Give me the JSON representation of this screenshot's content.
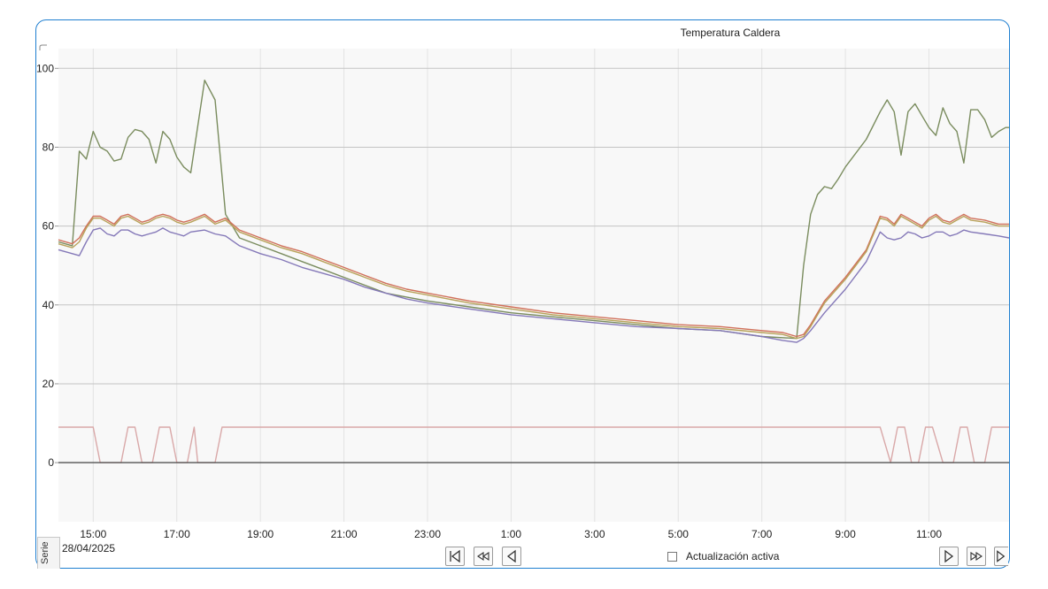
{
  "window": {
    "frame_color": "#1f7fd0"
  },
  "chart_data": {
    "type": "line",
    "title": "Temperatura Caldera",
    "xlabel": "",
    "ylabel": "",
    "ylim": [
      -15,
      105
    ],
    "xlim": [
      "14:10",
      "12:55"
    ],
    "x_ticks": [
      "15:00",
      "17:00",
      "19:00",
      "21:00",
      "23:00",
      "1:00",
      "3:00",
      "5:00",
      "7:00",
      "9:00",
      "11:00"
    ],
    "y_ticks": [
      0,
      20,
      40,
      60,
      80,
      100
    ],
    "grid": true,
    "legend": "none",
    "date": "28/04/2025",
    "series": [
      {
        "color": "#7a8c5e",
        "x": [
          "14:10",
          "14:30",
          "14:40",
          "14:50",
          "15:00",
          "15:10",
          "15:20",
          "15:30",
          "15:40",
          "15:50",
          "16:00",
          "16:10",
          "16:20",
          "16:30",
          "16:40",
          "16:50",
          "17:00",
          "17:10",
          "17:20",
          "17:40",
          "17:55",
          "18:10",
          "18:30",
          "19:00",
          "19:30",
          "20:00",
          "20:30",
          "21:00",
          "21:30",
          "22:00",
          "22:30",
          "23:00",
          "0:00",
          "1:00",
          "2:00",
          "3:00",
          "4:00",
          "5:00",
          "6:00",
          "7:00",
          "7:50",
          "8:00",
          "8:10",
          "8:20",
          "8:30",
          "8:40",
          "8:50",
          "9:00",
          "9:30",
          "9:50",
          "10:00",
          "10:10",
          "10:20",
          "10:30",
          "10:40",
          "10:50",
          "11:00",
          "11:10",
          "11:20",
          "11:30",
          "11:40",
          "11:50",
          "12:00",
          "12:10",
          "12:20",
          "12:30",
          "12:40",
          "12:50",
          "12:55"
        ],
        "y": [
          56,
          55,
          79,
          77,
          84,
          80,
          79,
          76.5,
          77,
          82.5,
          84.5,
          84,
          82,
          76,
          84,
          82,
          77.5,
          75,
          73.5,
          97,
          92,
          63,
          57,
          55,
          53,
          51,
          49,
          47,
          45,
          43,
          42,
          41,
          39.5,
          38,
          37,
          36,
          35,
          34,
          33.5,
          32,
          31.5,
          50,
          63,
          68,
          70,
          69.5,
          72,
          75,
          82,
          89,
          92,
          89,
          78,
          89,
          91,
          88,
          85,
          83,
          90,
          86,
          84,
          76,
          89.5,
          89.5,
          87,
          82.5,
          84,
          85,
          85
        ]
      },
      {
        "color": "#d0705a",
        "x": [
          "14:10",
          "14:30",
          "14:40",
          "14:50",
          "15:00",
          "15:10",
          "15:20",
          "15:30",
          "15:40",
          "15:50",
          "16:00",
          "16:10",
          "16:20",
          "16:30",
          "16:40",
          "16:50",
          "17:00",
          "17:10",
          "17:20",
          "17:40",
          "17:55",
          "18:10",
          "18:30",
          "19:00",
          "19:30",
          "20:00",
          "20:30",
          "21:00",
          "21:30",
          "22:00",
          "22:30",
          "23:00",
          "0:00",
          "1:00",
          "2:00",
          "3:00",
          "4:00",
          "5:00",
          "6:00",
          "7:00",
          "7:30",
          "7:50",
          "8:00",
          "8:10",
          "8:30",
          "9:00",
          "9:30",
          "9:50",
          "10:00",
          "10:10",
          "10:20",
          "10:30",
          "10:40",
          "10:50",
          "11:00",
          "11:10",
          "11:20",
          "11:30",
          "11:40",
          "11:50",
          "12:00",
          "12:20",
          "12:40",
          "12:55"
        ],
        "y": [
          56.5,
          55.5,
          57,
          60,
          62.5,
          62.5,
          61.5,
          60.5,
          62.5,
          63,
          62,
          61,
          61.5,
          62.5,
          63,
          62.5,
          61.5,
          61,
          61.5,
          63,
          61,
          62,
          59,
          57,
          55,
          53.5,
          51.5,
          49.5,
          47.5,
          45.5,
          44,
          43,
          41,
          39.5,
          38,
          37,
          36,
          35,
          34.5,
          33.5,
          33,
          32,
          32.5,
          35,
          41,
          47,
          54,
          62.5,
          62,
          60.5,
          63,
          62,
          61,
          60,
          62,
          63,
          61.5,
          61,
          62,
          63,
          62,
          61.5,
          60.5,
          60.5
        ]
      },
      {
        "color": "#b8a25a",
        "x": [
          "14:10",
          "14:30",
          "14:40",
          "14:50",
          "15:00",
          "15:10",
          "15:20",
          "15:30",
          "15:40",
          "15:50",
          "16:00",
          "16:10",
          "16:20",
          "16:30",
          "16:40",
          "16:50",
          "17:00",
          "17:10",
          "17:20",
          "17:40",
          "17:55",
          "18:10",
          "18:30",
          "19:00",
          "19:30",
          "20:00",
          "20:30",
          "21:00",
          "21:30",
          "22:00",
          "22:30",
          "23:00",
          "0:00",
          "1:00",
          "2:00",
          "3:00",
          "4:00",
          "5:00",
          "6:00",
          "7:00",
          "7:30",
          "7:50",
          "8:00",
          "8:10",
          "8:30",
          "9:00",
          "9:30",
          "9:50",
          "10:00",
          "10:10",
          "10:20",
          "10:30",
          "10:40",
          "10:50",
          "11:00",
          "11:10",
          "11:20",
          "11:30",
          "11:40",
          "11:50",
          "12:00",
          "12:20",
          "12:40",
          "12:55"
        ],
        "y": [
          55.5,
          54.5,
          56,
          59.5,
          62,
          62,
          61,
          60,
          62,
          62.5,
          61.5,
          60.5,
          61,
          62,
          62.5,
          62,
          61,
          60.5,
          61,
          62.5,
          60.5,
          61.5,
          58.5,
          56.5,
          54.5,
          53,
          51,
          49,
          47,
          45,
          43.5,
          42.5,
          40.5,
          39,
          37.5,
          36.5,
          35.5,
          34.5,
          34,
          33,
          32.5,
          31.5,
          32,
          34.5,
          40.5,
          46.5,
          53.5,
          62,
          61.5,
          60,
          62.5,
          61.5,
          60.5,
          59.5,
          61.5,
          62.5,
          61,
          60.5,
          61.5,
          62.5,
          61.5,
          61,
          60,
          60
        ]
      },
      {
        "color": "#8478b8",
        "x": [
          "14:10",
          "14:30",
          "14:40",
          "14:50",
          "15:00",
          "15:10",
          "15:20",
          "15:30",
          "15:40",
          "15:50",
          "16:00",
          "16:10",
          "16:20",
          "16:30",
          "16:40",
          "16:50",
          "17:00",
          "17:10",
          "17:20",
          "17:40",
          "17:55",
          "18:10",
          "18:30",
          "19:00",
          "19:30",
          "20:00",
          "20:30",
          "21:00",
          "21:30",
          "22:00",
          "22:30",
          "23:00",
          "0:00",
          "1:00",
          "2:00",
          "3:00",
          "4:00",
          "5:00",
          "6:00",
          "7:00",
          "7:30",
          "7:50",
          "8:00",
          "8:10",
          "8:30",
          "9:00",
          "9:30",
          "9:50",
          "10:00",
          "10:10",
          "10:20",
          "10:30",
          "10:40",
          "10:50",
          "11:00",
          "11:10",
          "11:20",
          "11:30",
          "11:40",
          "11:50",
          "12:00",
          "12:20",
          "12:40",
          "12:55"
        ],
        "y": [
          54,
          53,
          52.5,
          56,
          59,
          59.5,
          58,
          57.5,
          59,
          59,
          58,
          57.5,
          58,
          58.5,
          59.5,
          58.5,
          58,
          57.5,
          58.5,
          59,
          58,
          57.5,
          55,
          53,
          51.5,
          49.5,
          48,
          46.5,
          44.5,
          43,
          41.5,
          40.5,
          39,
          37.5,
          36.5,
          35.5,
          34.5,
          34,
          33.5,
          32,
          31,
          30.5,
          31.5,
          33.5,
          38,
          44,
          51,
          58.5,
          57,
          56.5,
          57,
          58.5,
          58,
          57,
          57.5,
          58.5,
          58.5,
          57.5,
          58,
          59,
          58.5,
          58,
          57.5,
          57
        ]
      },
      {
        "color": "#d9a8a8",
        "x": [
          "14:10",
          "15:00",
          "15:10",
          "15:40",
          "15:50",
          "16:00",
          "16:10",
          "16:25",
          "16:35",
          "16:50",
          "17:00",
          "17:15",
          "17:25",
          "17:30",
          "17:40",
          "17:55",
          "18:05",
          "18:15",
          "21:00",
          "1:00",
          "5:00",
          "9:00",
          "9:50",
          "10:05",
          "10:15",
          "10:25",
          "10:35",
          "10:45",
          "10:55",
          "11:05",
          "11:20",
          "11:35",
          "11:45",
          "11:55",
          "12:05",
          "12:20",
          "12:30",
          "12:40",
          "12:55"
        ],
        "y": [
          9,
          9,
          0,
          0,
          9,
          9,
          0,
          0,
          9,
          9,
          0,
          0,
          9,
          0,
          0,
          0,
          9,
          9,
          9,
          9,
          9,
          9,
          9,
          0,
          9,
          9,
          0,
          0,
          9,
          9,
          0,
          0,
          9,
          9,
          0,
          0,
          9,
          9,
          9
        ]
      },
      {
        "color": "#555555",
        "x": [
          "14:10",
          "12:55"
        ],
        "y": [
          0,
          0
        ]
      }
    ]
  },
  "controls": {
    "serie_tab": "Serie",
    "auto_update_label": "Actualización activa",
    "auto_update_checked": false,
    "buttons": [
      "first-icon",
      "fast-back-icon",
      "back-icon",
      "forward-icon",
      "fast-forward-icon",
      "last-icon"
    ]
  }
}
